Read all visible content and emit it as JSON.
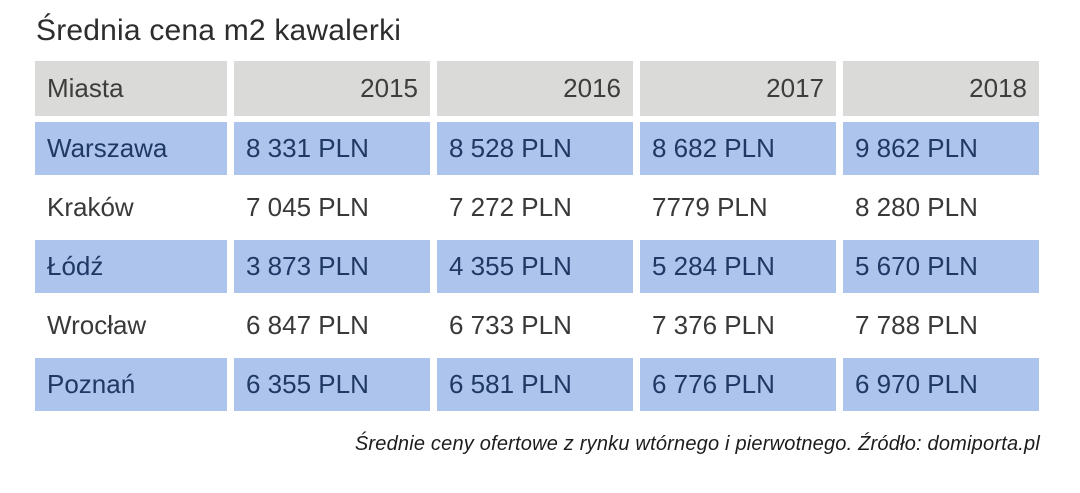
{
  "title": "Średnia cena m2 kawalerki",
  "table": {
    "columns": [
      "Miasta",
      "2015",
      "2016",
      "2017",
      "2018"
    ],
    "rows": [
      {
        "city": "Warszawa",
        "values": [
          "8 331 PLN",
          "8 528 PLN",
          "8 682 PLN",
          "9 862 PLN"
        ],
        "highlighted": true
      },
      {
        "city": "Kraków",
        "values": [
          "7 045 PLN",
          "7 272 PLN",
          "7779 PLN",
          "8 280 PLN"
        ],
        "highlighted": false
      },
      {
        "city": "Łódź",
        "values": [
          "3 873 PLN",
          "4 355 PLN",
          "5 284 PLN",
          "5 670 PLN"
        ],
        "highlighted": true
      },
      {
        "city": "Wrocław",
        "values": [
          "6 847 PLN",
          "6 733 PLN",
          "7 376 PLN",
          "7 788 PLN"
        ],
        "highlighted": false
      },
      {
        "city": "Poznań",
        "values": [
          "6 355 PLN",
          "6 581 PLN",
          "6 776 PLN",
          "6 970 PLN"
        ],
        "highlighted": true
      }
    ]
  },
  "footer": "Średnie ceny ofertowe z rynku wtórnego i pierwotnego. Źródło: domiporta.pl",
  "colors": {
    "header_bg": "#dadad8",
    "highlight_row_bg": "#adc5ec",
    "plain_row_bg": "#ffffff",
    "highlight_text": "#1f3864",
    "plain_text": "#393939",
    "header_text": "#3d3d3d",
    "title_text": "#2d2d2d"
  },
  "chart_data": {
    "type": "table",
    "title": "Średnia cena m2 kawalerki",
    "categories": [
      "2015",
      "2016",
      "2017",
      "2018"
    ],
    "series": [
      {
        "name": "Warszawa",
        "values": [
          8331,
          8528,
          8682,
          9862
        ]
      },
      {
        "name": "Kraków",
        "values": [
          7045,
          7272,
          7779,
          8280
        ]
      },
      {
        "name": "Łódź",
        "values": [
          3873,
          4355,
          5284,
          5670
        ]
      },
      {
        "name": "Wrocław",
        "values": [
          6847,
          6733,
          7376,
          7788
        ]
      },
      {
        "name": "Poznań",
        "values": [
          6355,
          6581,
          6776,
          6970
        ]
      }
    ],
    "unit": "PLN",
    "row_header_label": "Miasta",
    "note": "Średnie ceny ofertowe z rynku wtórnego i pierwotnego. Źródło: domiporta.pl"
  }
}
